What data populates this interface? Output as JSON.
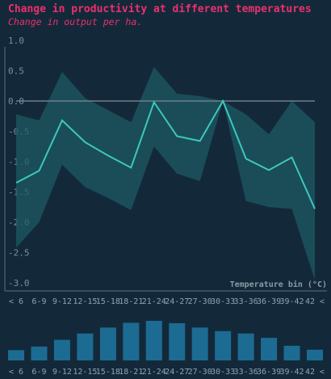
{
  "title": "Change in productivity at different temperatures",
  "subtitle": "Change in output per ha.",
  "colors": {
    "background": "#13293a",
    "title": "#ec2f6d",
    "line": "#3cc8bd",
    "band": "#1e5a63",
    "zero_line": "#6d7f8b",
    "bars": "#1c6b93",
    "axis": "#5c7080"
  },
  "chart_data": [
    {
      "type": "line",
      "x": [
        "< 6",
        "6-9",
        "9-12",
        "12-15",
        "15-18",
        "18-21",
        "21-24",
        "24-27",
        "27-30",
        "30-33",
        "33-36",
        "36-39",
        "39-42",
        "42 <"
      ],
      "series": [
        {
          "values": [
            -1.35,
            -1.15,
            -0.32,
            -0.68,
            -0.9,
            -1.1,
            -0.02,
            -0.58,
            -0.66,
            0.0,
            -0.95,
            -1.14,
            -0.93,
            -1.78
          ]
        }
      ],
      "band_upper": [
        -0.22,
        -0.32,
        0.48,
        0.05,
        -0.15,
        -0.35,
        0.56,
        0.12,
        0.08,
        0.0,
        -0.22,
        -0.55,
        0.0,
        -0.35
      ],
      "band_lower": [
        -2.42,
        -2.0,
        -1.05,
        -1.42,
        -1.6,
        -1.8,
        -0.75,
        -1.2,
        -1.32,
        0.0,
        -1.65,
        -1.75,
        -1.78,
        -2.95
      ],
      "xlabel": "Temperature bin (°C)",
      "ylabel": "",
      "yticks": [
        1.0,
        0.5,
        0.0,
        -0.5,
        -1.0,
        -1.5,
        -2.0,
        -2.5,
        -3.0
      ],
      "ylim": [
        -3.0,
        1.0
      ],
      "grid": false,
      "reference_line": 0.0
    },
    {
      "type": "bar",
      "categories": [
        "< 6",
        "6-9",
        "9-12",
        "12-15",
        "15-18",
        "18-21",
        "21-24",
        "24-27",
        "27-30",
        "30-33",
        "33-36",
        "36-39",
        "39-42",
        "42 <"
      ],
      "values": [
        0.26,
        0.35,
        0.52,
        0.68,
        0.83,
        0.95,
        1.0,
        0.94,
        0.83,
        0.74,
        0.68,
        0.57,
        0.37,
        0.27
      ]
    }
  ]
}
